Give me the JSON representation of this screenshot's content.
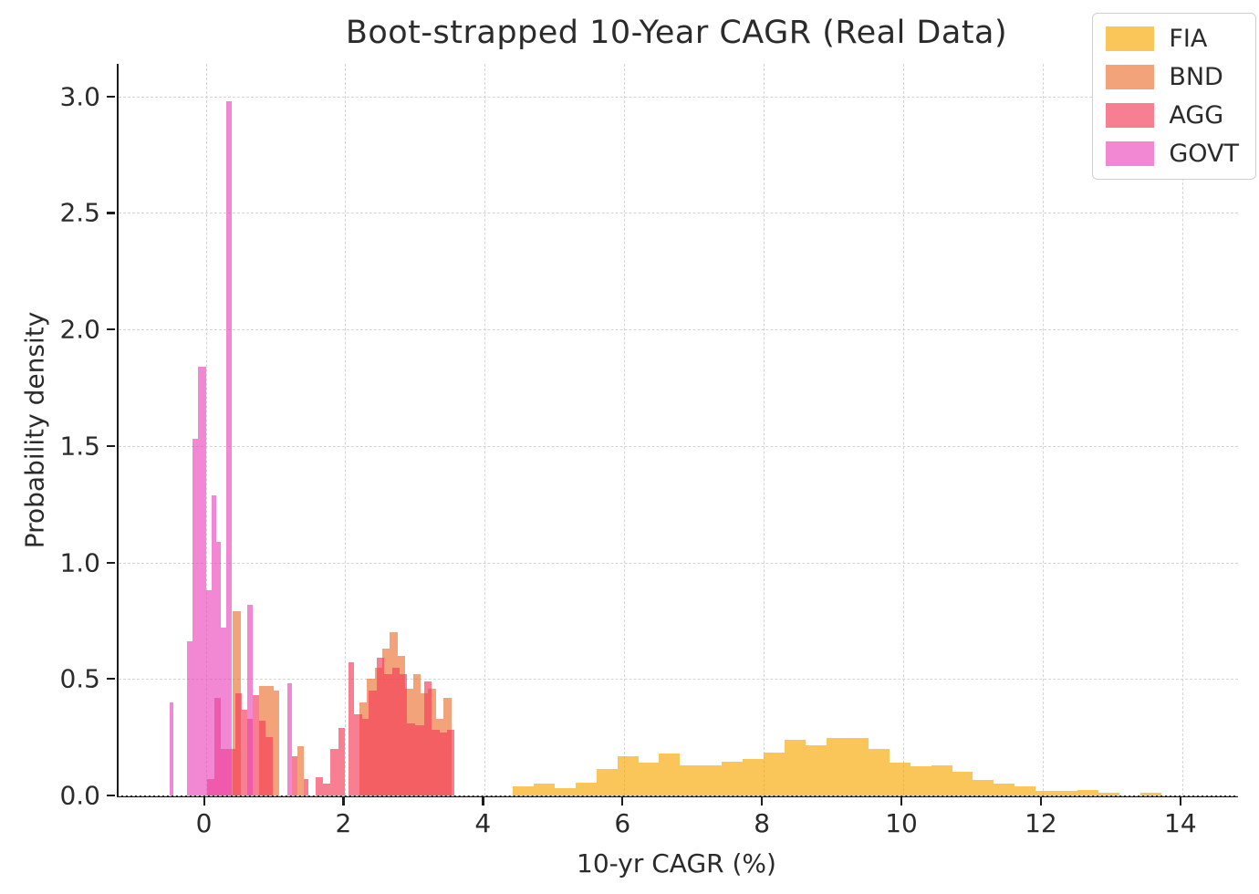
{
  "figure": {
    "title": "Boot-strapped 10-Year CAGR (Real Data)"
  },
  "chart_data": {
    "type": "histogram",
    "title": "Boot-strapped 10-Year CAGR (Real Data)",
    "xlabel": "10-yr CAGR (%)",
    "ylabel": "Probability density",
    "xlim": [
      -1.25,
      14.8
    ],
    "ylim": [
      0,
      3.14
    ],
    "xticks": [
      0,
      2,
      4,
      6,
      8,
      10,
      12,
      14
    ],
    "xtick_labels": [
      "0",
      "2",
      "4",
      "6",
      "8",
      "10",
      "12",
      "14"
    ],
    "yticks": [
      0.0,
      0.5,
      1.0,
      1.5,
      2.0,
      2.5,
      3.0
    ],
    "ytick_labels": [
      "0.0",
      "0.5",
      "1.0",
      "1.5",
      "2.0",
      "2.5",
      "3.0"
    ],
    "grid": true,
    "grid_style": "dashed",
    "legend_position": "upper right",
    "legend_entries": [
      "FIA",
      "BND",
      "AGG",
      "GOVT"
    ],
    "bar_alpha": 0.65,
    "series": [
      {
        "name": "FIA",
        "color": "#F7A700",
        "bars": [
          [
            4.4,
            4.7,
            0.04
          ],
          [
            4.7,
            5.0,
            0.05
          ],
          [
            5.0,
            5.3,
            0.03
          ],
          [
            5.3,
            5.6,
            0.055
          ],
          [
            5.6,
            5.9,
            0.115
          ],
          [
            5.9,
            6.2,
            0.17
          ],
          [
            6.2,
            6.5,
            0.14
          ],
          [
            6.5,
            6.8,
            0.18
          ],
          [
            6.8,
            7.1,
            0.13
          ],
          [
            7.1,
            7.4,
            0.13
          ],
          [
            7.4,
            7.7,
            0.145
          ],
          [
            7.7,
            8.0,
            0.155
          ],
          [
            8.0,
            8.3,
            0.185
          ],
          [
            8.3,
            8.6,
            0.24
          ],
          [
            8.6,
            8.9,
            0.215
          ],
          [
            8.9,
            9.2,
            0.245
          ],
          [
            9.2,
            9.5,
            0.245
          ],
          [
            9.5,
            9.8,
            0.2
          ],
          [
            9.8,
            10.1,
            0.14
          ],
          [
            10.1,
            10.4,
            0.125
          ],
          [
            10.4,
            10.7,
            0.13
          ],
          [
            10.7,
            11.0,
            0.1
          ],
          [
            11.0,
            11.3,
            0.065
          ],
          [
            11.3,
            11.6,
            0.05
          ],
          [
            11.6,
            11.9,
            0.04
          ],
          [
            11.9,
            12.2,
            0.02
          ],
          [
            12.2,
            12.5,
            0.02
          ],
          [
            12.5,
            12.8,
            0.025
          ],
          [
            12.8,
            13.1,
            0.01
          ],
          [
            13.4,
            13.7,
            0.01
          ]
        ]
      },
      {
        "name": "BND",
        "color": "#EB7231",
        "bars": [
          [
            0.39,
            0.5,
            0.79
          ],
          [
            0.76,
            0.87,
            0.47
          ],
          [
            0.87,
            0.97,
            0.47
          ],
          [
            0.97,
            1.05,
            0.45
          ],
          [
            1.31,
            1.41,
            0.21
          ],
          [
            2.2,
            2.31,
            0.4
          ],
          [
            2.31,
            2.42,
            0.5
          ],
          [
            2.42,
            2.53,
            0.55
          ],
          [
            2.53,
            2.64,
            0.63
          ],
          [
            2.64,
            2.75,
            0.7
          ],
          [
            2.75,
            2.86,
            0.6
          ],
          [
            2.86,
            2.97,
            0.46
          ],
          [
            2.97,
            3.08,
            0.52
          ],
          [
            3.08,
            3.19,
            0.44
          ],
          [
            3.19,
            3.3,
            0.46
          ],
          [
            3.3,
            3.41,
            0.33
          ],
          [
            3.41,
            3.52,
            0.42
          ]
        ]
      },
      {
        "name": "AGG",
        "color": "#F53A58",
        "bars": [
          [
            0.02,
            0.12,
            0.07
          ],
          [
            0.12,
            0.22,
            0.42
          ],
          [
            0.22,
            0.31,
            0.2
          ],
          [
            0.31,
            0.43,
            0.2
          ],
          [
            0.43,
            0.52,
            0.44
          ],
          [
            0.52,
            0.6,
            0.37
          ],
          [
            0.6,
            0.67,
            0.33
          ],
          [
            0.67,
            0.76,
            0.43
          ],
          [
            0.76,
            0.86,
            0.32
          ],
          [
            0.86,
            0.96,
            0.25
          ],
          [
            1.24,
            1.31,
            0.17
          ],
          [
            1.41,
            1.47,
            0.07
          ],
          [
            1.57,
            1.68,
            0.08
          ],
          [
            1.68,
            1.79,
            0.05
          ],
          [
            1.79,
            1.9,
            0.2
          ],
          [
            1.9,
            2.0,
            0.29
          ],
          [
            2.04,
            2.13,
            0.57
          ],
          [
            2.13,
            2.24,
            0.35
          ],
          [
            2.24,
            2.34,
            0.33
          ],
          [
            2.34,
            2.45,
            0.45
          ],
          [
            2.45,
            2.56,
            0.59
          ],
          [
            2.56,
            2.67,
            0.52
          ],
          [
            2.67,
            2.78,
            0.55
          ],
          [
            2.78,
            2.89,
            0.52
          ],
          [
            2.89,
            3.0,
            0.31
          ],
          [
            3.0,
            3.13,
            0.3
          ],
          [
            3.13,
            3.24,
            0.49
          ],
          [
            3.24,
            3.35,
            0.28
          ],
          [
            3.35,
            3.46,
            0.27
          ],
          [
            3.46,
            3.57,
            0.28
          ]
        ]
      },
      {
        "name": "GOVT",
        "color": "#EB47BC",
        "bars": [
          [
            -0.52,
            -0.46,
            0.4
          ],
          [
            -0.27,
            -0.19,
            0.66
          ],
          [
            -0.19,
            -0.11,
            1.53
          ],
          [
            -0.11,
            0.01,
            1.84
          ],
          [
            0.01,
            0.08,
            0.88
          ],
          [
            0.08,
            0.15,
            1.29
          ],
          [
            0.15,
            0.22,
            1.09
          ],
          [
            0.22,
            0.3,
            0.72
          ],
          [
            0.3,
            0.37,
            2.98
          ],
          [
            0.6,
            0.67,
            0.82
          ],
          [
            1.17,
            1.24,
            0.48
          ]
        ]
      }
    ]
  }
}
